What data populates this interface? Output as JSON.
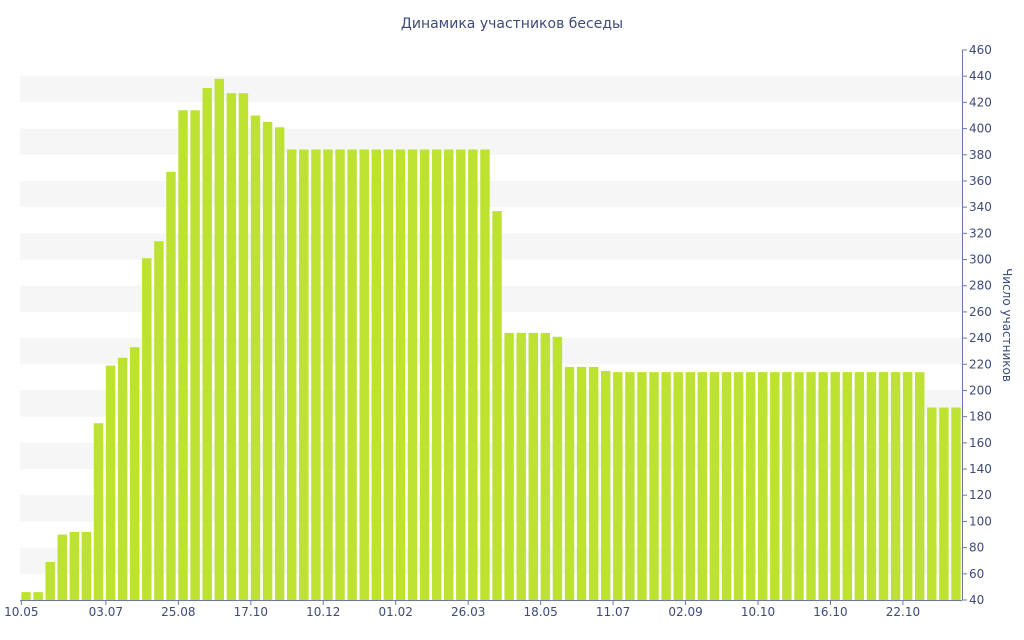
{
  "chart_data": {
    "type": "bar",
    "title": "Динамика участников беседы",
    "xlabel": "",
    "ylabel": "Число участников",
    "ylim": [
      40,
      460
    ],
    "y_ticks": [
      40,
      60,
      80,
      100,
      120,
      140,
      160,
      180,
      200,
      220,
      240,
      260,
      280,
      300,
      320,
      340,
      360,
      380,
      400,
      420,
      440,
      460
    ],
    "y_axis_position": "right",
    "grid": "horizontal bands",
    "legend": "none",
    "bar_color": "#bde231",
    "band_color": "#f6f6f6",
    "text_color": "#3e4a78",
    "x_tick_labels": [
      {
        "index": 0,
        "label": "10.05"
      },
      {
        "index": 7,
        "label": "03.07"
      },
      {
        "index": 13,
        "label": "25.08"
      },
      {
        "index": 19,
        "label": "17.10"
      },
      {
        "index": 25,
        "label": "10.12"
      },
      {
        "index": 31,
        "label": "01.02"
      },
      {
        "index": 37,
        "label": "26.03"
      },
      {
        "index": 43,
        "label": "18.05"
      },
      {
        "index": 49,
        "label": "11.07"
      },
      {
        "index": 55,
        "label": "02.09"
      },
      {
        "index": 61,
        "label": "10.10"
      },
      {
        "index": 67,
        "label": "16.10"
      },
      {
        "index": 73,
        "label": "22.10"
      }
    ],
    "values": [
      46,
      46,
      69,
      90,
      92,
      92,
      175,
      219,
      225,
      233,
      301,
      314,
      367,
      414,
      414,
      431,
      438,
      427,
      427,
      410,
      405,
      401,
      384,
      384,
      384,
      384,
      384,
      384,
      384,
      384,
      384,
      384,
      384,
      384,
      384,
      384,
      384,
      384,
      384,
      337,
      244,
      244,
      244,
      244,
      241,
      218,
      218,
      218,
      215,
      214,
      214,
      214,
      214,
      214,
      214,
      214,
      214,
      214,
      214,
      214,
      214,
      214,
      214,
      214,
      214,
      214,
      214,
      214,
      214,
      214,
      214,
      214,
      214,
      214,
      214,
      187,
      187,
      187
    ]
  }
}
